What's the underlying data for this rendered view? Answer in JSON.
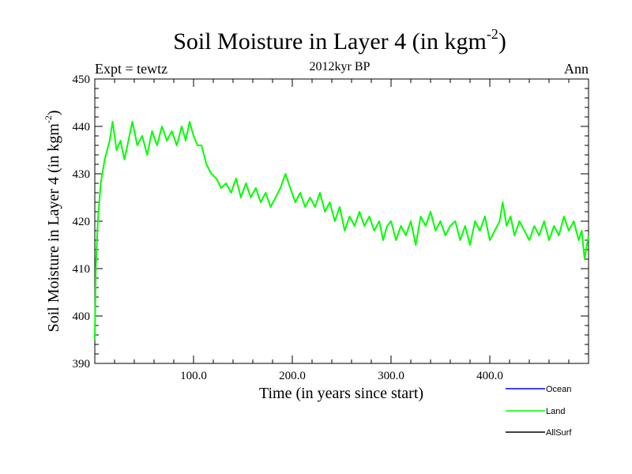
{
  "chart_data": {
    "type": "line",
    "title": "Soil Moisture in Layer 4 (in kgm",
    "title_sup": "-2",
    "title_close": ")",
    "subtitle": "2012kyr BP",
    "left_label": "Expt = tewtz",
    "right_label": "Ann",
    "xlabel": "Time (in years since start)",
    "ylabel": "Soil Moisture in Layer 4 (in kgm",
    "ylabel_sup": "-2",
    "ylabel_close": ")",
    "xlim": [
      0,
      500
    ],
    "ylim": [
      390,
      450
    ],
    "x_ticks": [
      100,
      200,
      300,
      400
    ],
    "x_tick_labels": [
      "100.0",
      "200.0",
      "300.0",
      "400.0"
    ],
    "y_ticks": [
      390,
      400,
      410,
      420,
      430,
      440,
      450
    ],
    "y_tick_labels": [
      "390",
      "400",
      "410",
      "420",
      "430",
      "440",
      "450"
    ],
    "legend_position": "bottom-right",
    "legend": [
      {
        "name": "Ocean",
        "color": "#0000ff"
      },
      {
        "name": "Land",
        "color": "#00ff00"
      },
      {
        "name": "AllSurf",
        "color": "#000000"
      }
    ],
    "series": [
      {
        "name": "Land",
        "color": "#00ff00",
        "x": [
          0,
          1,
          3,
          6,
          10,
          15,
          18,
          22,
          26,
          30,
          35,
          38,
          43,
          48,
          53,
          58,
          63,
          68,
          73,
          78,
          83,
          88,
          92,
          96,
          100,
          104,
          108,
          113,
          118,
          123,
          128,
          133,
          138,
          143,
          148,
          153,
          158,
          163,
          168,
          173,
          178,
          183,
          188,
          193,
          198,
          203,
          208,
          213,
          218,
          223,
          228,
          233,
          238,
          243,
          248,
          253,
          258,
          263,
          268,
          273,
          278,
          283,
          288,
          292,
          296,
          300,
          305,
          310,
          315,
          320,
          325,
          330,
          335,
          340,
          345,
          350,
          355,
          360,
          365,
          370,
          375,
          380,
          385,
          390,
          395,
          400,
          405,
          410,
          413,
          417,
          421,
          425,
          430,
          435,
          440,
          445,
          450,
          455,
          460,
          465,
          470,
          475,
          480,
          485,
          490,
          493,
          496,
          500
        ],
        "values": [
          395,
          410,
          420,
          428,
          433,
          437,
          441,
          435,
          437,
          433,
          438,
          441,
          436,
          438,
          434,
          439,
          436,
          440,
          437,
          439,
          436,
          440,
          437,
          441,
          438,
          436,
          436,
          432,
          430,
          429,
          427,
          428,
          426,
          429,
          425,
          428,
          425,
          427,
          424,
          426,
          423,
          425,
          427,
          430,
          427,
          424,
          426,
          423,
          425,
          423,
          426,
          422,
          424,
          420,
          423,
          418,
          421,
          419,
          422,
          419,
          421,
          418,
          420,
          416,
          419,
          420,
          416,
          419,
          417,
          420,
          415,
          421,
          419,
          422,
          418,
          420,
          417,
          419,
          420,
          416,
          419,
          415,
          420,
          418,
          421,
          416,
          418,
          420,
          424,
          419,
          421,
          417,
          420,
          418,
          416,
          419,
          417,
          420,
          416,
          419,
          417,
          421,
          418,
          420,
          416,
          418,
          412,
          417
        ]
      }
    ]
  }
}
